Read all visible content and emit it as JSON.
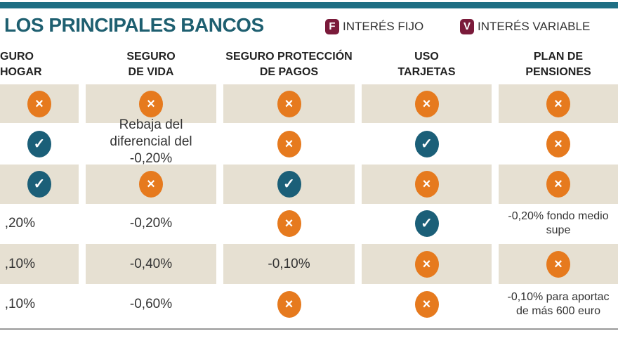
{
  "title": "LOS PRINCIPALES BANCOS",
  "legend": [
    {
      "badge": "F",
      "label": "INTERÉS FIJO"
    },
    {
      "badge": "V",
      "label": "INTERÉS VARIABLE"
    }
  ],
  "colors": {
    "accent": "#1f6f84",
    "cross": "#e67a1e",
    "check": "#1b5f78",
    "shade": "#e6e0d2",
    "badge": "#7a1a3a"
  },
  "headers": [
    [
      "GURO",
      "HOGAR"
    ],
    [
      "SEGURO",
      "DE VIDA"
    ],
    [
      "SEGURO PROTECCIÓN",
      "DE PAGOS"
    ],
    [
      "USO",
      "TARJETAS"
    ],
    [
      "PLAN DE",
      "PENSIONES"
    ]
  ],
  "rows": [
    [
      "x",
      "x",
      "x",
      "x",
      "x"
    ],
    [
      "check",
      "Rebaja del diferencial del -0,20%",
      "x",
      "check",
      "x"
    ],
    [
      "check",
      "x",
      "check",
      "x",
      "x"
    ],
    [
      ",20%",
      "-0,20%",
      "x",
      "check",
      "-0,20% fondo medio supe"
    ],
    [
      ",10%",
      "-0,40%",
      "-0,10%",
      "x",
      "x"
    ],
    [
      ",10%",
      "-0,60%",
      "x",
      "x",
      "-0,10% para aportac de más 600 euro"
    ]
  ],
  "icons": {
    "x": "×",
    "check": "✓"
  }
}
